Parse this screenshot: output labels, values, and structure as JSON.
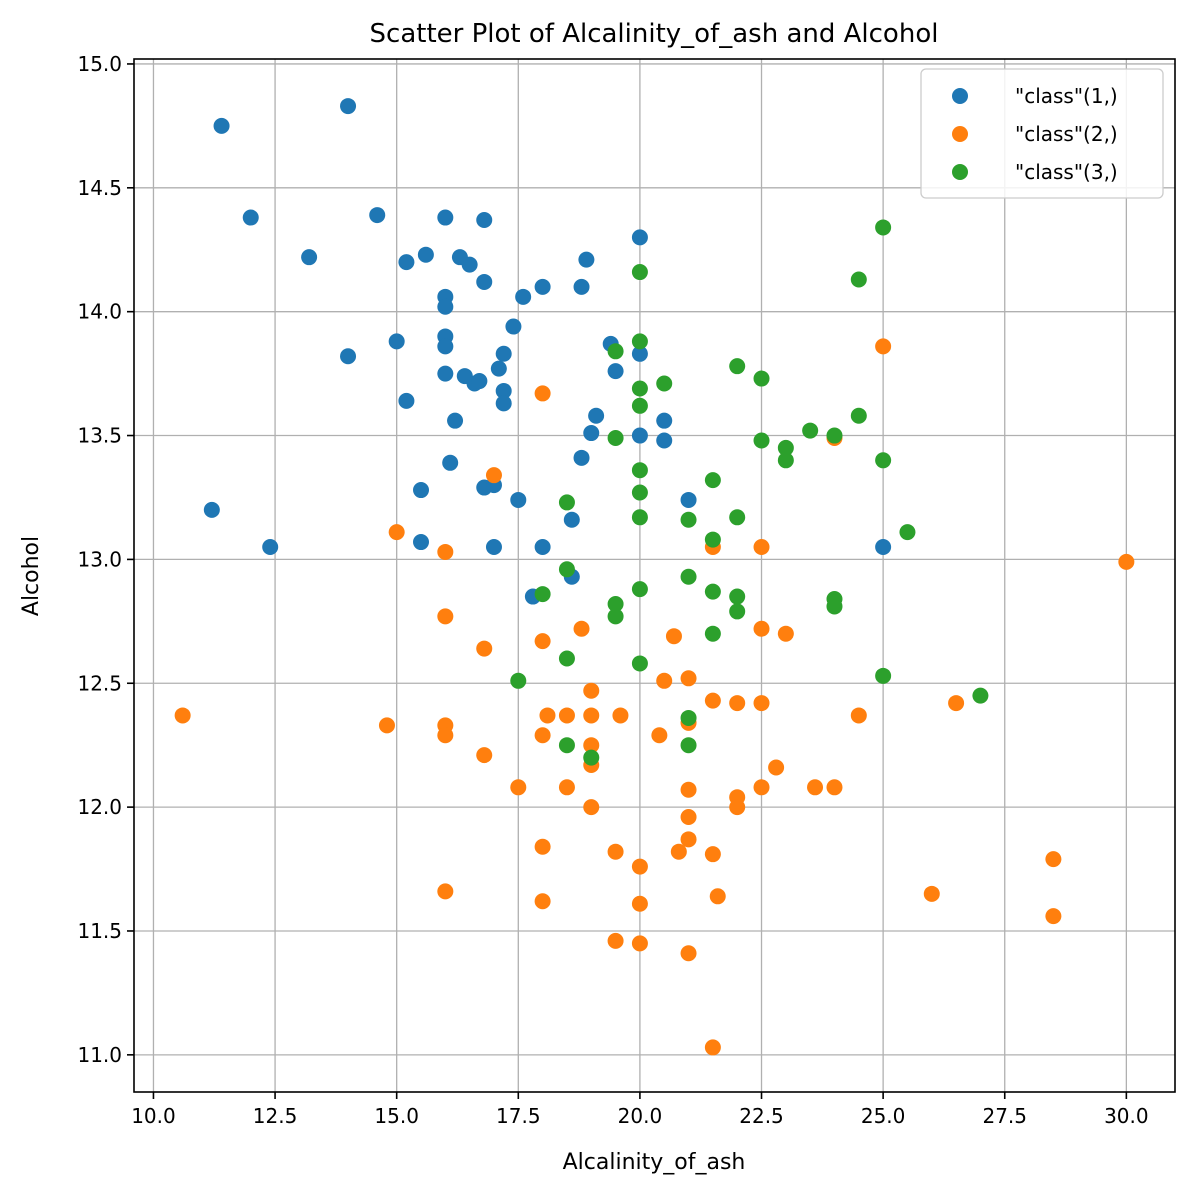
{
  "chart_data": {
    "type": "scatter",
    "title": "Scatter Plot of Alcalinity_of_ash and Alcohol",
    "xlabel": "Alcalinity_of_ash",
    "ylabel": "Alcohol",
    "xlim": [
      9.6,
      31.0
    ],
    "ylim": [
      10.85,
      15.02
    ],
    "xticks": [
      10.0,
      12.5,
      15.0,
      17.5,
      20.0,
      22.5,
      25.0,
      27.5,
      30.0
    ],
    "xtick_labels": [
      "10.0",
      "12.5",
      "15.0",
      "17.5",
      "20.0",
      "22.5",
      "25.0",
      "27.5",
      "30.0"
    ],
    "yticks": [
      11.0,
      11.5,
      12.0,
      12.5,
      13.0,
      13.5,
      14.0,
      14.5,
      15.0
    ],
    "ytick_labels": [
      "11.0",
      "11.5",
      "12.0",
      "12.5",
      "13.0",
      "13.5",
      "14.0",
      "14.5",
      "15.0"
    ],
    "grid": true,
    "legend_position": "top-right",
    "series": [
      {
        "name": "\"class\"(1,)",
        "color": "#1f77b4",
        "points": [
          [
            11.4,
            14.75
          ],
          [
            14.0,
            14.83
          ],
          [
            12.0,
            14.38
          ],
          [
            14.6,
            14.39
          ],
          [
            16.0,
            14.38
          ],
          [
            16.8,
            14.37
          ],
          [
            13.2,
            14.22
          ],
          [
            15.2,
            14.2
          ],
          [
            15.6,
            14.23
          ],
          [
            16.3,
            14.22
          ],
          [
            16.5,
            14.19
          ],
          [
            16.8,
            14.12
          ],
          [
            18.9,
            14.21
          ],
          [
            20.0,
            14.3
          ],
          [
            17.6,
            14.06
          ],
          [
            18.0,
            14.1
          ],
          [
            18.8,
            14.1
          ],
          [
            16.0,
            14.06
          ],
          [
            16.0,
            14.02
          ],
          [
            17.4,
            13.94
          ],
          [
            14.0,
            13.82
          ],
          [
            15.0,
            13.88
          ],
          [
            16.0,
            13.9
          ],
          [
            16.0,
            13.86
          ],
          [
            17.2,
            13.83
          ],
          [
            17.1,
            13.77
          ],
          [
            19.4,
            13.87
          ],
          [
            20.0,
            13.83
          ],
          [
            16.0,
            13.75
          ],
          [
            16.4,
            13.74
          ],
          [
            16.6,
            13.71
          ],
          [
            16.7,
            13.72
          ],
          [
            17.2,
            13.68
          ],
          [
            17.2,
            13.63
          ],
          [
            19.5,
            13.76
          ],
          [
            15.2,
            13.64
          ],
          [
            16.2,
            13.56
          ],
          [
            19.1,
            13.58
          ],
          [
            20.5,
            13.56
          ],
          [
            19.0,
            13.51
          ],
          [
            20.0,
            13.5
          ],
          [
            20.5,
            13.48
          ],
          [
            16.1,
            13.39
          ],
          [
            18.8,
            13.41
          ],
          [
            15.5,
            13.28
          ],
          [
            16.8,
            13.29
          ],
          [
            17.0,
            13.3
          ],
          [
            17.5,
            13.24
          ],
          [
            21.0,
            13.24
          ],
          [
            11.2,
            13.2
          ],
          [
            18.6,
            13.16
          ],
          [
            12.4,
            13.05
          ],
          [
            15.5,
            13.07
          ],
          [
            17.0,
            13.05
          ],
          [
            18.0,
            13.05
          ],
          [
            25.0,
            13.05
          ],
          [
            18.6,
            12.93
          ],
          [
            17.8,
            12.85
          ]
        ]
      },
      {
        "name": "\"class\"(2,)",
        "color": "#ff7f0e",
        "points": [
          [
            25.0,
            13.86
          ],
          [
            18.0,
            13.67
          ],
          [
            24.0,
            13.49
          ],
          [
            17.0,
            13.34
          ],
          [
            15.0,
            13.11
          ],
          [
            16.0,
            13.03
          ],
          [
            21.5,
            13.05
          ],
          [
            22.5,
            13.05
          ],
          [
            30.0,
            12.99
          ],
          [
            16.0,
            12.77
          ],
          [
            18.8,
            12.72
          ],
          [
            22.5,
            12.72
          ],
          [
            20.7,
            12.69
          ],
          [
            23.0,
            12.7
          ],
          [
            18.0,
            12.67
          ],
          [
            16.8,
            12.64
          ],
          [
            20.5,
            12.51
          ],
          [
            21.0,
            12.52
          ],
          [
            19.0,
            12.47
          ],
          [
            21.5,
            12.43
          ],
          [
            22.0,
            12.42
          ],
          [
            22.5,
            12.42
          ],
          [
            26.5,
            12.42
          ],
          [
            10.6,
            12.37
          ],
          [
            18.1,
            12.37
          ],
          [
            18.5,
            12.37
          ],
          [
            19.0,
            12.37
          ],
          [
            19.6,
            12.37
          ],
          [
            24.5,
            12.37
          ],
          [
            14.8,
            12.33
          ],
          [
            16.0,
            12.33
          ],
          [
            21.0,
            12.34
          ],
          [
            16.0,
            12.29
          ],
          [
            18.0,
            12.29
          ],
          [
            20.4,
            12.29
          ],
          [
            19.0,
            12.25
          ],
          [
            16.8,
            12.21
          ],
          [
            19.0,
            12.17
          ],
          [
            22.8,
            12.16
          ],
          [
            17.5,
            12.08
          ],
          [
            18.5,
            12.08
          ],
          [
            21.0,
            12.07
          ],
          [
            22.5,
            12.08
          ],
          [
            23.6,
            12.08
          ],
          [
            24.0,
            12.08
          ],
          [
            22.0,
            12.04
          ],
          [
            19.0,
            12.0
          ],
          [
            22.0,
            12.0
          ],
          [
            21.0,
            11.96
          ],
          [
            21.0,
            11.87
          ],
          [
            18.0,
            11.84
          ],
          [
            19.5,
            11.82
          ],
          [
            20.8,
            11.82
          ],
          [
            21.5,
            11.81
          ],
          [
            28.5,
            11.79
          ],
          [
            20.0,
            11.76
          ],
          [
            16.0,
            11.66
          ],
          [
            26.0,
            11.65
          ],
          [
            21.6,
            11.64
          ],
          [
            18.0,
            11.62
          ],
          [
            20.0,
            11.61
          ],
          [
            28.5,
            11.56
          ],
          [
            19.5,
            11.46
          ],
          [
            20.0,
            11.45
          ],
          [
            21.0,
            11.41
          ],
          [
            21.5,
            11.03
          ]
        ]
      },
      {
        "name": "\"class\"(3,)",
        "color": "#2ca02c",
        "points": [
          [
            25.0,
            14.34
          ],
          [
            20.0,
            14.16
          ],
          [
            24.5,
            14.13
          ],
          [
            20.0,
            13.88
          ],
          [
            19.5,
            13.84
          ],
          [
            22.0,
            13.78
          ],
          [
            22.5,
            13.73
          ],
          [
            20.5,
            13.71
          ],
          [
            20.0,
            13.69
          ],
          [
            20.0,
            13.62
          ],
          [
            24.5,
            13.58
          ],
          [
            23.5,
            13.52
          ],
          [
            19.5,
            13.49
          ],
          [
            22.5,
            13.48
          ],
          [
            24.0,
            13.5
          ],
          [
            23.0,
            13.45
          ],
          [
            23.0,
            13.4
          ],
          [
            25.0,
            13.4
          ],
          [
            20.0,
            13.36
          ],
          [
            21.5,
            13.32
          ],
          [
            20.0,
            13.27
          ],
          [
            18.5,
            13.23
          ],
          [
            20.0,
            13.17
          ],
          [
            21.0,
            13.16
          ],
          [
            22.0,
            13.17
          ],
          [
            25.5,
            13.11
          ],
          [
            21.5,
            13.08
          ],
          [
            18.5,
            12.96
          ],
          [
            21.0,
            12.93
          ],
          [
            20.0,
            12.88
          ],
          [
            18.0,
            12.86
          ],
          [
            21.5,
            12.87
          ],
          [
            22.0,
            12.85
          ],
          [
            24.0,
            12.84
          ],
          [
            19.5,
            12.82
          ],
          [
            24.0,
            12.81
          ],
          [
            22.0,
            12.79
          ],
          [
            19.5,
            12.77
          ],
          [
            21.5,
            12.7
          ],
          [
            18.5,
            12.6
          ],
          [
            20.0,
            12.58
          ],
          [
            17.5,
            12.51
          ],
          [
            25.0,
            12.53
          ],
          [
            27.0,
            12.45
          ],
          [
            21.0,
            12.36
          ],
          [
            18.5,
            12.25
          ],
          [
            21.0,
            12.25
          ],
          [
            19.0,
            12.2
          ]
        ]
      }
    ]
  }
}
